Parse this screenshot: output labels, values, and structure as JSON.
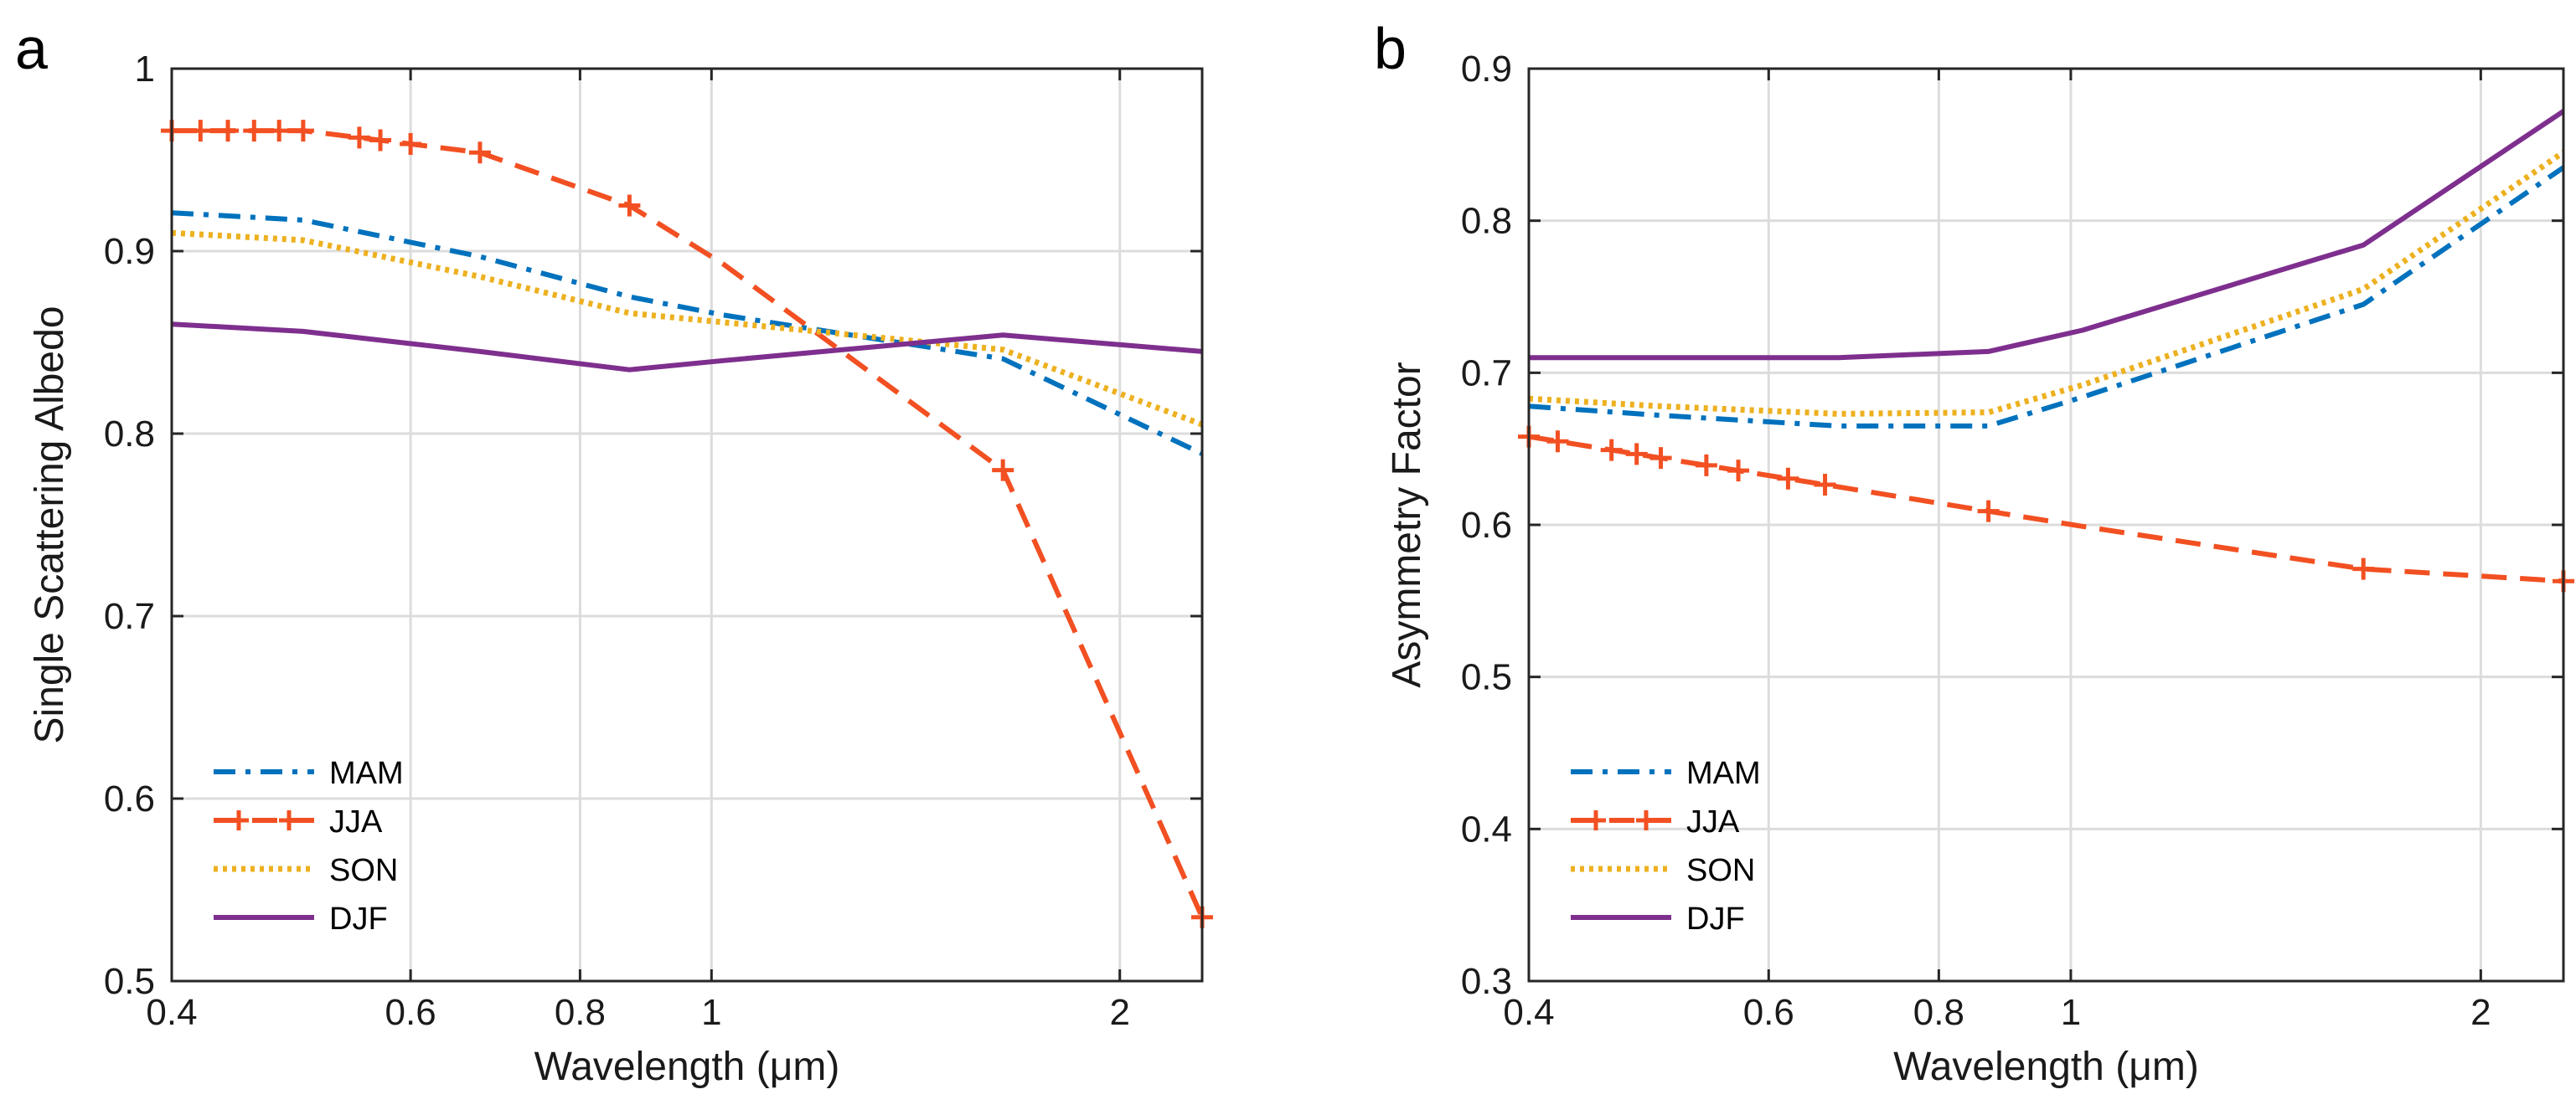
{
  "chart_data": [
    {
      "panel": "a",
      "type": "line",
      "xscale": "log",
      "xlabel": "Wavelength (μm)",
      "ylabel": "Single Scattering Albedo",
      "xlim": [
        0.4,
        2.3
      ],
      "ylim": [
        0.5,
        1.0
      ],
      "xticks": [
        {
          "v": 0.4,
          "label": "0.4"
        },
        {
          "v": 0.6,
          "label": "0.6"
        },
        {
          "v": 0.8,
          "label": "0.8"
        },
        {
          "v": 1,
          "label": "1"
        },
        {
          "v": 2,
          "label": "2"
        }
      ],
      "yticks": [
        {
          "v": 0.5,
          "label": "0.5"
        },
        {
          "v": 0.6,
          "label": "0.6"
        },
        {
          "v": 0.7,
          "label": "0.7"
        },
        {
          "v": 0.8,
          "label": "0.8"
        },
        {
          "v": 0.9,
          "label": "0.9"
        },
        {
          "v": 1.0,
          "label": "1"
        }
      ],
      "grid": true,
      "legend_position": "bottom-left",
      "series": [
        {
          "name": "MAM",
          "color": "#0072BD",
          "style": "dashdot",
          "marker": "none",
          "x": [
            0.4,
            0.5,
            0.675,
            0.87,
            1.02,
            1.64,
            2.3
          ],
          "y": [
            0.921,
            0.917,
            0.897,
            0.875,
            0.865,
            0.841,
            0.789
          ]
        },
        {
          "name": "JJA",
          "color": "#F25022",
          "style": "dashed",
          "marker": "plus",
          "x": [
            0.4,
            0.5,
            0.675,
            0.87,
            1.02,
            1.64,
            2.3
          ],
          "y": [
            0.966,
            0.966,
            0.954,
            0.925,
            0.893,
            0.78,
            0.535
          ],
          "markers": [
            0.4,
            0.42,
            0.44,
            0.46,
            0.48,
            0.5,
            0.55,
            0.57,
            0.6,
            0.675,
            0.87,
            1.64,
            2.3
          ]
        },
        {
          "name": "SON",
          "color": "#EDB120",
          "style": "dotted",
          "marker": "none",
          "x": [
            0.4,
            0.5,
            0.675,
            0.87,
            1.02,
            1.64,
            2.3
          ],
          "y": [
            0.91,
            0.906,
            0.886,
            0.866,
            0.861,
            0.846,
            0.805
          ]
        },
        {
          "name": "DJF",
          "color": "#7E2F8E",
          "style": "solid",
          "marker": "none",
          "x": [
            0.4,
            0.5,
            0.675,
            0.87,
            1.02,
            1.64,
            2.3
          ],
          "y": [
            0.86,
            0.856,
            0.845,
            0.835,
            0.84,
            0.854,
            0.845
          ]
        }
      ]
    },
    {
      "panel": "b",
      "type": "line",
      "xscale": "log",
      "xlabel": "Wavelength (μm)",
      "ylabel": "Asymmetry Factor",
      "xlim": [
        0.4,
        2.3
      ],
      "ylim": [
        0.3,
        0.9
      ],
      "xticks": [
        {
          "v": 0.4,
          "label": "0.4"
        },
        {
          "v": 0.6,
          "label": "0.6"
        },
        {
          "v": 0.8,
          "label": "0.8"
        },
        {
          "v": 1,
          "label": "1"
        },
        {
          "v": 2,
          "label": "2"
        }
      ],
      "yticks": [
        {
          "v": 0.3,
          "label": "0.3"
        },
        {
          "v": 0.4,
          "label": "0.4"
        },
        {
          "v": 0.5,
          "label": "0.5"
        },
        {
          "v": 0.6,
          "label": "0.6"
        },
        {
          "v": 0.7,
          "label": "0.7"
        },
        {
          "v": 0.8,
          "label": "0.8"
        },
        {
          "v": 0.9,
          "label": "0.9"
        }
      ],
      "grid": true,
      "legend_position": "bottom-left",
      "series": [
        {
          "name": "MAM",
          "color": "#0072BD",
          "style": "dashdot",
          "marker": "none",
          "x": [
            0.4,
            0.5,
            0.675,
            0.87,
            1.02,
            1.64,
            2.3
          ],
          "y": [
            0.678,
            0.672,
            0.665,
            0.665,
            0.684,
            0.745,
            0.835
          ]
        },
        {
          "name": "JJA",
          "color": "#F25022",
          "style": "dashed",
          "marker": "plus",
          "x": [
            0.4,
            0.5,
            0.675,
            0.87,
            1.02,
            1.64,
            2.3
          ],
          "y": [
            0.658,
            0.644,
            0.625,
            0.609,
            0.599,
            0.571,
            0.563
          ],
          "markers": [
            0.4,
            0.42,
            0.46,
            0.48,
            0.5,
            0.54,
            0.57,
            0.62,
            0.66,
            0.87,
            1.64,
            2.3
          ]
        },
        {
          "name": "SON",
          "color": "#EDB120",
          "style": "dotted",
          "marker": "none",
          "x": [
            0.4,
            0.5,
            0.675,
            0.87,
            1.02,
            1.64,
            2.3
          ],
          "y": [
            0.683,
            0.678,
            0.673,
            0.674,
            0.692,
            0.755,
            0.845
          ]
        },
        {
          "name": "DJF",
          "color": "#7E2F8E",
          "style": "solid",
          "marker": "none",
          "x": [
            0.4,
            0.5,
            0.675,
            0.87,
            1.02,
            1.64,
            2.3
          ],
          "y": [
            0.71,
            0.71,
            0.71,
            0.714,
            0.728,
            0.784,
            0.872
          ]
        }
      ]
    }
  ]
}
